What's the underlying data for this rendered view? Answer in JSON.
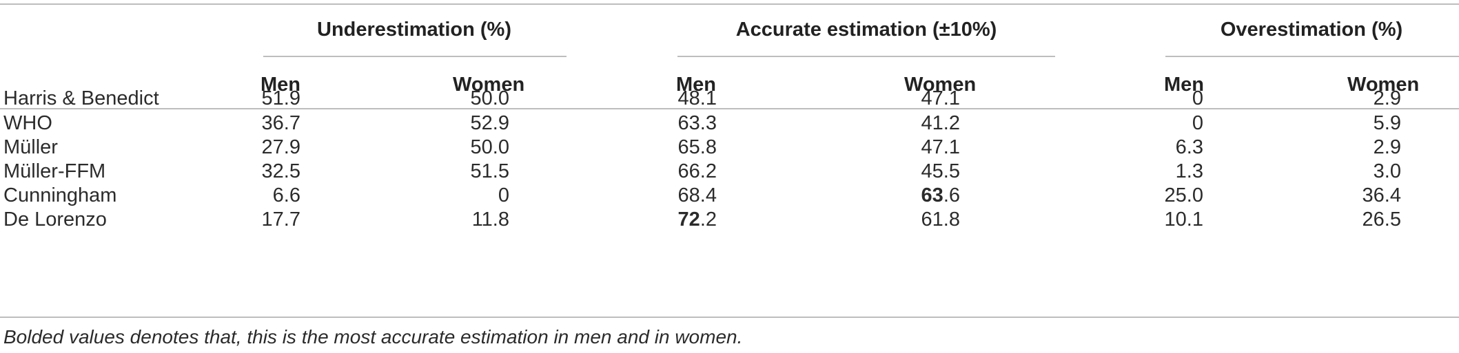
{
  "table": {
    "group_headers": [
      "Underestimation (%)",
      "Accurate estimation (±10%)",
      "Overestimation (%)"
    ],
    "sub_headers": [
      "Men",
      "Women",
      "Men",
      "Women",
      "Men",
      "Women"
    ],
    "rows": [
      {
        "label": "Harris & Benedict",
        "cells": [
          "51.9",
          "50.0",
          "48.1",
          "47.1",
          "0",
          "2.9"
        ]
      },
      {
        "label": "WHO",
        "cells": [
          "36.7",
          "52.9",
          "63.3",
          "41.2",
          "0",
          "5.9"
        ]
      },
      {
        "label": "Müller",
        "cells": [
          "27.9",
          "50.0",
          "65.8",
          "47.1",
          "6.3",
          "2.9"
        ]
      },
      {
        "label": "Müller-FFM",
        "cells": [
          "32.5",
          "51.5",
          "66.2",
          "45.5",
          "1.3",
          "3.0"
        ]
      },
      {
        "label": "Cunningham",
        "cells": [
          "6.6",
          "0",
          "68.4",
          "63.6",
          "25.0",
          "36.4"
        ]
      },
      {
        "label": "De Lorenzo",
        "cells": [
          "17.7",
          "11.8",
          "72.2",
          "61.8",
          "10.1",
          "26.5"
        ]
      }
    ],
    "bold_cells": [
      [
        4,
        3
      ],
      [
        5,
        2
      ]
    ],
    "footnote": "Bolded values denotes that, this is the most accurate estimation in men and in women."
  }
}
